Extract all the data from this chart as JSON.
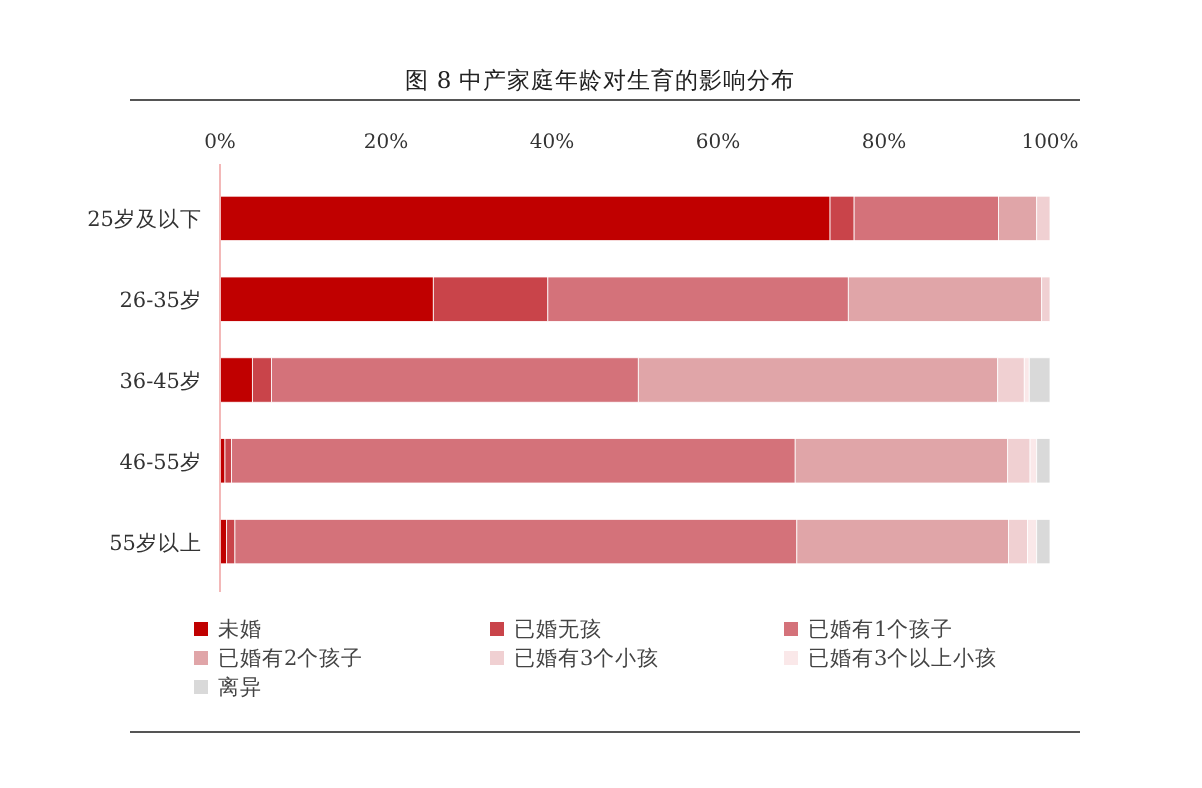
{
  "chart_data": {
    "type": "bar",
    "orientation": "horizontal",
    "stacked": true,
    "title": "图 8  中产家庭年龄对生育的影响分布",
    "categories": [
      "25岁及以下",
      "26-35岁",
      "36-45岁",
      "46-55岁",
      "55岁以上"
    ],
    "xlim": [
      0,
      100
    ],
    "xticks": [
      {
        "value": 0,
        "label": "0%"
      },
      {
        "value": 20,
        "label": "20%"
      },
      {
        "value": 40,
        "label": "40%"
      },
      {
        "value": 60,
        "label": "60%"
      },
      {
        "value": 80,
        "label": "80%"
      },
      {
        "value": 100,
        "label": "100%"
      }
    ],
    "grid": false,
    "legend": "bottom",
    "series": [
      {
        "name": "未婚",
        "color": "#c00000",
        "values": [
          73.5,
          25.7,
          3.9,
          0.6,
          0.8
        ]
      },
      {
        "name": "已婚无孩",
        "color": "#c9444a",
        "values": [
          2.9,
          13.8,
          2.3,
          0.8,
          1.0
        ]
      },
      {
        "name": "已婚有1个孩子",
        "color": "#d4727a",
        "values": [
          17.4,
          36.2,
          44.2,
          67.9,
          67.7
        ]
      },
      {
        "name": "已婚有2个孩子",
        "color": "#e0a5a8",
        "values": [
          4.6,
          23.3,
          43.3,
          25.6,
          25.5
        ]
      },
      {
        "name": "已婚有3个小孩",
        "color": "#f0d0d2",
        "values": [
          1.6,
          1.0,
          3.2,
          2.7,
          2.3
        ]
      },
      {
        "name": "已婚有3个以上小孩",
        "color": "#fae8e9",
        "values": [
          0,
          0,
          0.6,
          0.8,
          1.1
        ]
      },
      {
        "name": "离异",
        "color": "#d9d9d9",
        "values": [
          0,
          0,
          2.5,
          1.6,
          1.6
        ]
      }
    ]
  }
}
